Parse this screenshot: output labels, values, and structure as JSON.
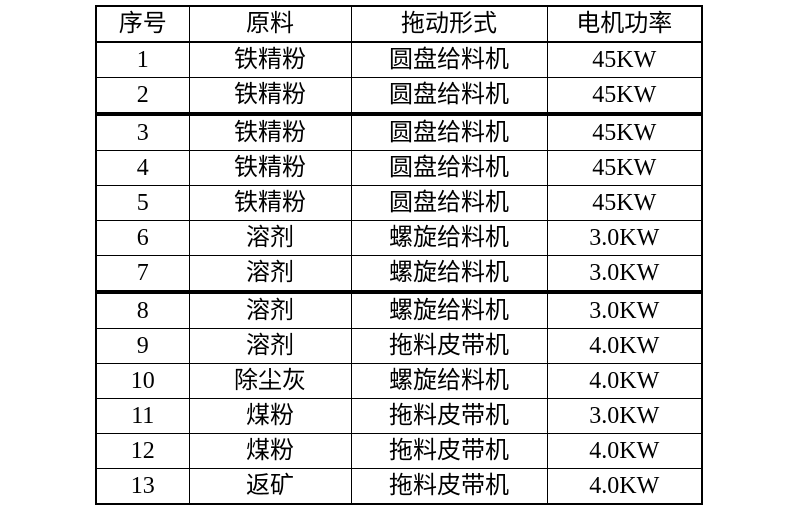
{
  "table": {
    "columns": [
      "序号",
      "原料",
      "拖动形式",
      "电机功率"
    ],
    "rows": [
      {
        "no": "1",
        "material": "铁精粉",
        "drive": "圆盘给料机",
        "power": "45KW"
      },
      {
        "no": "2",
        "material": "铁精粉",
        "drive": "圆盘给料机",
        "power": "45KW"
      },
      {
        "no": "3",
        "material": "铁精粉",
        "drive": "圆盘给料机",
        "power": "45KW"
      },
      {
        "no": "4",
        "material": "铁精粉",
        "drive": "圆盘给料机",
        "power": "45KW"
      },
      {
        "no": "5",
        "material": "铁精粉",
        "drive": "圆盘给料机",
        "power": "45KW"
      },
      {
        "no": "6",
        "material": "溶剂",
        "drive": "螺旋给料机",
        "power": "3.0KW"
      },
      {
        "no": "7",
        "material": "溶剂",
        "drive": "螺旋给料机",
        "power": "3.0KW"
      },
      {
        "no": "8",
        "material": "溶剂",
        "drive": "螺旋给料机",
        "power": "3.0KW"
      },
      {
        "no": "9",
        "material": "溶剂",
        "drive": "拖料皮带机",
        "power": "4.0KW"
      },
      {
        "no": "10",
        "material": "除尘灰",
        "drive": "螺旋给料机",
        "power": "4.0KW"
      },
      {
        "no": "11",
        "material": "煤粉",
        "drive": "拖料皮带机",
        "power": "3.0KW"
      },
      {
        "no": "12",
        "material": "煤粉",
        "drive": "拖料皮带机",
        "power": "4.0KW"
      },
      {
        "no": "13",
        "material": "返矿",
        "drive": "拖料皮带机",
        "power": "4.0KW"
      }
    ],
    "thick_separator_after_rows": [
      "2",
      "7"
    ],
    "border_color": "#000000",
    "text_color": "#000000",
    "background_color": "#ffffff"
  }
}
